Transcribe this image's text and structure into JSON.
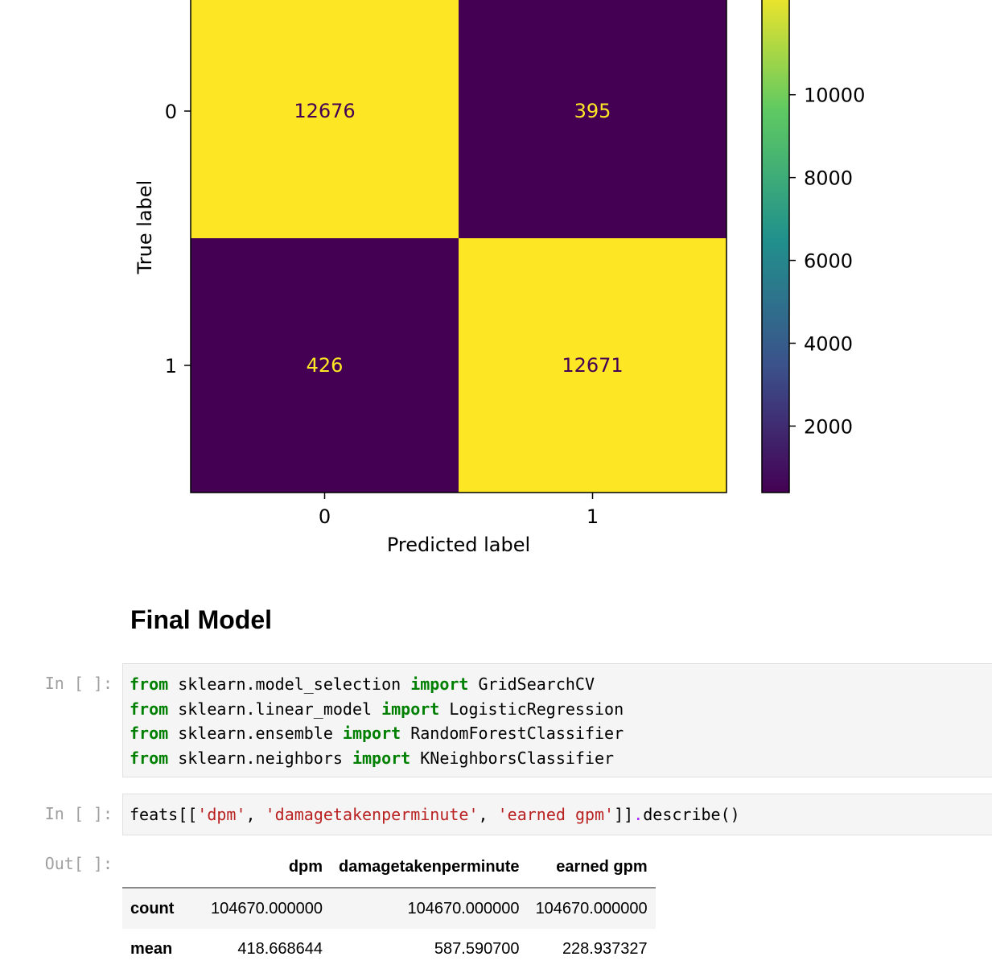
{
  "chart_data": {
    "type": "heatmap",
    "xlabel": "Predicted label",
    "ylabel": "True label",
    "x_ticks": [
      "0",
      "1"
    ],
    "y_ticks": [
      "0",
      "1"
    ],
    "matrix": [
      [
        12676,
        395
      ],
      [
        426,
        12671
      ]
    ],
    "colormap": "viridis",
    "colorbar_ticks": [
      2000,
      4000,
      6000,
      8000,
      10000
    ],
    "colorbar_range": [
      395,
      12676
    ],
    "colors": {
      "high": "#fde725",
      "low": "#440154",
      "text_on_high": "#440154",
      "text_on_low": "#fde725"
    }
  },
  "notebook": {
    "heading": "Final Model",
    "cell1": {
      "prompt": "In [ ]:",
      "lines": [
        {
          "a": "from",
          "b": " sklearn.model_selection ",
          "c": "import",
          "d": " GridSearchCV"
        },
        {
          "a": "from",
          "b": " sklearn.linear_model ",
          "c": "import",
          "d": " LogisticRegression"
        },
        {
          "a": "from",
          "b": " sklearn.ensemble ",
          "c": "import",
          "d": " RandomForestClassifier"
        },
        {
          "a": "from",
          "b": " sklearn.neighbors ",
          "c": "import",
          "d": " KNeighborsClassifier"
        }
      ]
    },
    "cell2": {
      "prompt": "In [ ]:",
      "p1": "feats[[",
      "s1": "'dpm'",
      "p2": ", ",
      "s2": "'damagetakenperminute'",
      "p3": ", ",
      "s3": "'earned gpm'",
      "p4": "]]",
      "dot": ".",
      "p5": "describe()"
    },
    "output": {
      "prompt": "Out[ ]:",
      "columns": [
        "",
        "dpm",
        "damagetakenperminute",
        "earned gpm"
      ],
      "rows": [
        [
          "count",
          "104670.000000",
          "104670.000000",
          "104670.000000"
        ],
        [
          "mean",
          "418.668644",
          "587.590700",
          "228.937327"
        ]
      ]
    }
  }
}
